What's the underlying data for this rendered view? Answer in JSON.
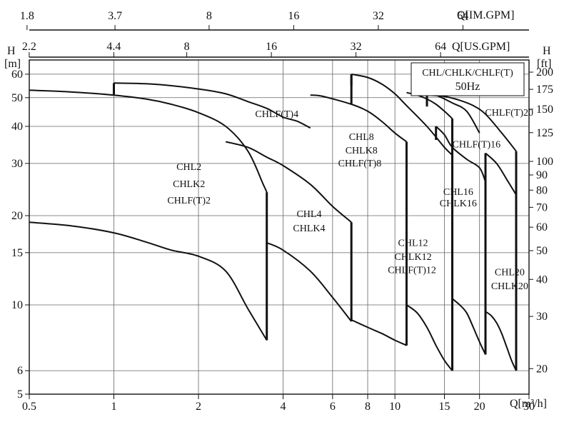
{
  "chart_data": {
    "type": "line",
    "title": "CHL/CHLK/CHLF(T)",
    "subtitle": "50Hz",
    "xlabel": "Q[m³/h]",
    "ylabel_left": "H",
    "ylabel_left_unit": "[m]",
    "ylabel_right": "H",
    "ylabel_right_unit": "[ft]",
    "x_scale": "log",
    "y_scale": "log",
    "xlim": [
      0.5,
      30
    ],
    "ylim": [
      5,
      67
    ],
    "grid": true,
    "x_ticks": [
      {
        "value": 0.5,
        "label": "0.5"
      },
      {
        "value": 1,
        "label": "1"
      },
      {
        "value": 2,
        "label": "2"
      },
      {
        "value": 4,
        "label": "4"
      },
      {
        "value": 6,
        "label": "6"
      },
      {
        "value": 8,
        "label": "8"
      },
      {
        "value": 10,
        "label": "10"
      },
      {
        "value": 15,
        "label": "15"
      },
      {
        "value": 20,
        "label": "20"
      },
      {
        "value": 30,
        "label": "30"
      }
    ],
    "y_ticks_left": [
      {
        "value": 5,
        "label": "5"
      },
      {
        "value": 6,
        "label": "6"
      },
      {
        "value": 10,
        "label": "10"
      },
      {
        "value": 15,
        "label": "15"
      },
      {
        "value": 20,
        "label": "20"
      },
      {
        "value": 30,
        "label": "30"
      },
      {
        "value": 40,
        "label": "40"
      },
      {
        "value": 50,
        "label": "50"
      },
      {
        "value": 60,
        "label": "60"
      }
    ],
    "y_ticks_right": [
      {
        "value": 20,
        "label": "20"
      },
      {
        "value": 30,
        "label": "30"
      },
      {
        "value": 40,
        "label": "40"
      },
      {
        "value": 50,
        "label": "50"
      },
      {
        "value": 60,
        "label": "60"
      },
      {
        "value": 70,
        "label": "70"
      },
      {
        "value": 80,
        "label": "80"
      },
      {
        "value": 90,
        "label": "90"
      },
      {
        "value": 100,
        "label": "100"
      },
      {
        "value": 125,
        "label": "125"
      },
      {
        "value": 150,
        "label": "150"
      },
      {
        "value": 175,
        "label": "175"
      },
      {
        "value": 200,
        "label": "200"
      }
    ],
    "top_axis_us": {
      "label": "Q[US.GPM]",
      "ticks": [
        {
          "value": 2.2,
          "label": "2.2"
        },
        {
          "value": 4.4,
          "label": "4.4"
        },
        {
          "value": 8,
          "label": "8"
        },
        {
          "value": 16,
          "label": "16"
        },
        {
          "value": 32,
          "label": "32"
        },
        {
          "value": 64,
          "label": "64"
        }
      ]
    },
    "top_axis_im": {
      "label": "Q[IM.GPM]",
      "ticks": [
        {
          "value": 1.8,
          "label": "1.8"
        },
        {
          "value": 3.7,
          "label": "3.7"
        },
        {
          "value": 8,
          "label": "8"
        },
        {
          "value": 16,
          "label": "16"
        },
        {
          "value": 32,
          "label": "32"
        },
        {
          "value": 64,
          "label": "64"
        }
      ]
    },
    "series": [
      {
        "name": "CHL2 / CHLK2 / CHLF(T)2",
        "upper": [
          [
            0.5,
            53
          ],
          [
            0.7,
            52.3
          ],
          [
            1,
            51
          ],
          [
            1.3,
            49.5
          ],
          [
            1.6,
            47.5
          ],
          [
            2,
            44.5
          ],
          [
            2.5,
            40
          ],
          [
            3,
            33
          ],
          [
            3.4,
            25.5
          ],
          [
            3.5,
            24
          ]
        ],
        "lower": [
          [
            0.5,
            19
          ],
          [
            0.7,
            18.5
          ],
          [
            1,
            17.5
          ],
          [
            1.3,
            16.3
          ],
          [
            1.6,
            15.3
          ],
          [
            2,
            14.6
          ],
          [
            2.5,
            13
          ],
          [
            3,
            9.7
          ],
          [
            3.5,
            7.6
          ]
        ],
        "qmax": 3.5
      },
      {
        "name": "CHLF(T)4",
        "upper": [
          [
            1,
            56
          ],
          [
            1.4,
            55.5
          ],
          [
            2,
            53.5
          ],
          [
            2.5,
            51.5
          ],
          [
            3,
            48.5
          ],
          [
            3.5,
            46
          ],
          [
            4,
            43
          ],
          [
            4.5,
            41.6
          ],
          [
            5,
            39.5
          ]
        ],
        "qmin": 1,
        "qmax": 5
      },
      {
        "name": "CHL4 / CHLK4",
        "upper": [
          [
            2.5,
            35.5
          ],
          [
            3,
            34
          ],
          [
            3.5,
            31.5
          ],
          [
            4,
            29.5
          ],
          [
            5,
            25.5
          ],
          [
            6,
            21.5
          ],
          [
            7,
            19
          ]
        ],
        "lower": [
          [
            3.5,
            16.2
          ],
          [
            4,
            15.3
          ],
          [
            5,
            13
          ],
          [
            6,
            10.6
          ],
          [
            7,
            8.8
          ]
        ],
        "qmax": 7
      },
      {
        "name": "CHL8 / CHLK8 / CHLF(T)8",
        "upper": [
          [
            5,
            51
          ],
          [
            5.5,
            50.6
          ],
          [
            7,
            47.5
          ],
          [
            8,
            45
          ],
          [
            9,
            41.5
          ],
          [
            10,
            38
          ],
          [
            11,
            35.5
          ]
        ],
        "lower": [
          [
            7,
            8.9
          ],
          [
            8,
            8.4
          ],
          [
            9,
            8.0
          ],
          [
            10,
            7.6
          ],
          [
            11,
            7.3
          ]
        ],
        "qmin": 5,
        "qmax": 11
      },
      {
        "name": "CHLF(T)8 curve",
        "upper": [
          [
            7,
            60
          ],
          [
            8,
            58.5
          ],
          [
            9,
            55.5
          ],
          [
            10,
            51.5
          ],
          [
            11,
            47
          ],
          [
            13,
            40
          ],
          [
            15,
            34
          ],
          [
            16,
            32
          ]
        ],
        "qmin": 7,
        "qmax": 16
      },
      {
        "name": "CHL12 / CHLK12 / CHLF(T)12",
        "upper": [
          [
            11,
            52
          ],
          [
            12,
            51
          ],
          [
            13,
            49.5
          ],
          [
            14,
            47.5
          ],
          [
            15,
            45
          ],
          [
            16,
            42.5
          ]
        ],
        "lower": [
          [
            11,
            10
          ],
          [
            12,
            9.4
          ],
          [
            13,
            8.4
          ],
          [
            14,
            7.3
          ],
          [
            15,
            6.5
          ],
          [
            16,
            6
          ]
        ],
        "qmin": 11,
        "qmax": 16
      },
      {
        "name": "CHL16 / CHLK16",
        "upper": [
          [
            14,
            40
          ],
          [
            15,
            37.5
          ],
          [
            16,
            34
          ],
          [
            18,
            31
          ],
          [
            20,
            29
          ],
          [
            21,
            26
          ]
        ],
        "lower": [
          [
            16,
            10.5
          ],
          [
            17,
            10
          ],
          [
            18,
            9.4
          ],
          [
            19,
            8.4
          ],
          [
            20,
            7.5
          ],
          [
            21,
            6.8
          ]
        ],
        "qmin": 14,
        "qmax": 21
      },
      {
        "name": "CHLF(T)16",
        "upper": [
          [
            13,
            52
          ],
          [
            14,
            51
          ],
          [
            16,
            48
          ],
          [
            18,
            45
          ],
          [
            20,
            38
          ]
        ],
        "qmin": 13,
        "qmax": 20
      },
      {
        "name": "CHLF(T)20",
        "upper": [
          [
            13,
            51
          ],
          [
            15,
            50.5
          ],
          [
            17,
            49
          ],
          [
            19,
            47
          ],
          [
            21,
            44
          ],
          [
            24,
            38
          ],
          [
            27,
            33
          ]
        ],
        "qmin": 13,
        "qmax": 27
      },
      {
        "name": "CHL20 / CHLK20",
        "upper": [
          [
            21,
            32.5
          ],
          [
            23,
            30
          ],
          [
            25,
            26.5
          ],
          [
            27,
            23.5
          ]
        ],
        "lower": [
          [
            21,
            9.5
          ],
          [
            22,
            9.2
          ],
          [
            23,
            8.7
          ],
          [
            24,
            8
          ],
          [
            25,
            7.2
          ],
          [
            26,
            6.5
          ],
          [
            27,
            6
          ]
        ],
        "qmin": 21,
        "qmax": 27
      }
    ],
    "annotations": [
      {
        "text": "CHLF(T)4",
        "x": 3.8,
        "y": 43
      },
      {
        "text": "CHL2",
        "x": 1.85,
        "y": 28.5
      },
      {
        "text": "CHLK2",
        "x": 1.85,
        "y": 25
      },
      {
        "text": "CHLF(T)2",
        "x": 1.85,
        "y": 22
      },
      {
        "text": "CHL4",
        "x": 4.95,
        "y": 19.8
      },
      {
        "text": "CHLK4",
        "x": 4.95,
        "y": 17.7
      },
      {
        "text": "CHL8",
        "x": 7.6,
        "y": 36
      },
      {
        "text": "CHLK8",
        "x": 7.6,
        "y": 32.4
      },
      {
        "text": "CHLF(T)8",
        "x": 7.5,
        "y": 29.3
      },
      {
        "text": "CHLF(T)16",
        "x": 19.5,
        "y": 34
      },
      {
        "text": "CHLF(T)20",
        "x": 25.5,
        "y": 43.5
      },
      {
        "text": "CHL16",
        "x": 16.8,
        "y": 23.5
      },
      {
        "text": "CHLK16",
        "x": 16.8,
        "y": 21.5
      },
      {
        "text": "CHL12",
        "x": 11.6,
        "y": 15.8
      },
      {
        "text": "CHLK12",
        "x": 11.6,
        "y": 14.2
      },
      {
        "text": "CHLF(T)12",
        "x": 11.5,
        "y": 12.8
      },
      {
        "text": "CHL20",
        "x": 25.6,
        "y": 12.6
      },
      {
        "text": "CHLK20",
        "x": 25.6,
        "y": 11.3
      }
    ]
  }
}
